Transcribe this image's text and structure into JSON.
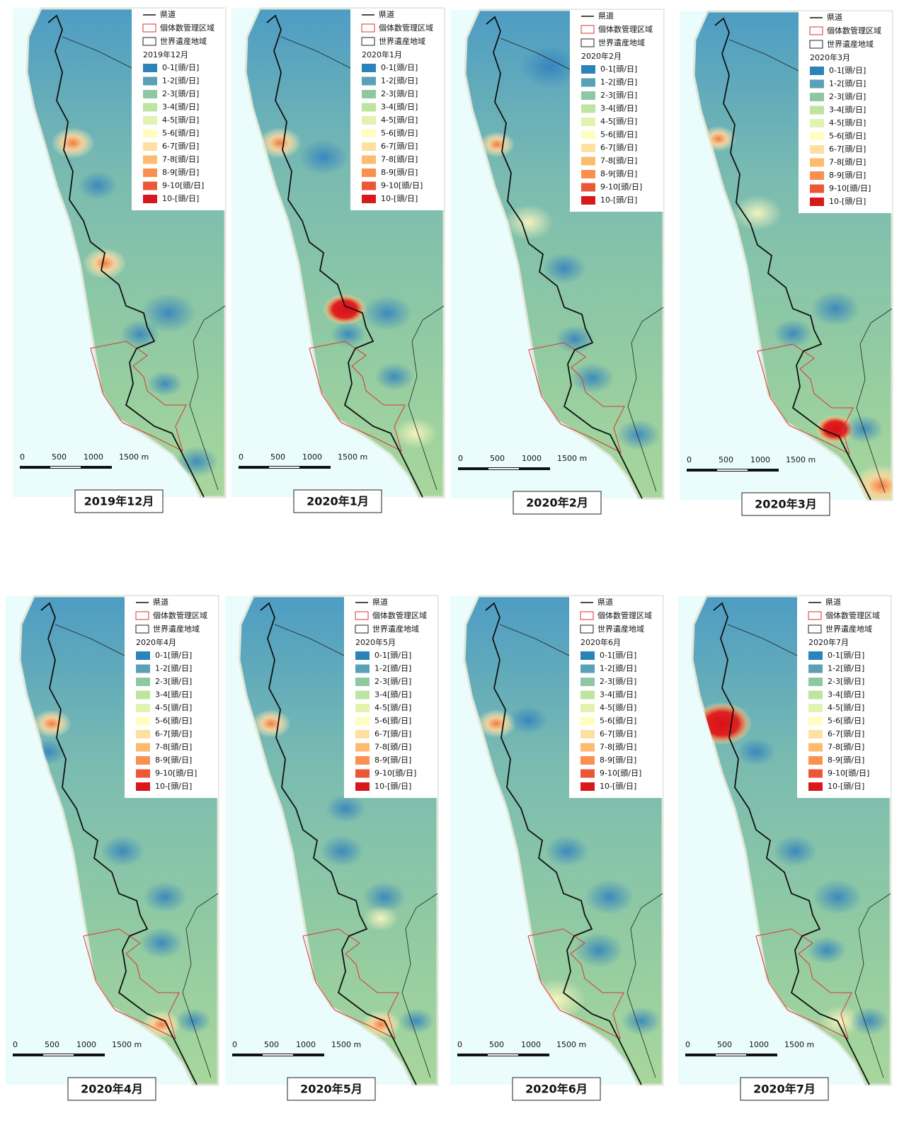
{
  "legend": {
    "road": "県道",
    "management_area": "個体数管理区域",
    "heritage_area": "世界遺産地域",
    "classes": [
      {
        "label": "0-1[頭/日]",
        "color": "#2b83ba"
      },
      {
        "label": "1-2[頭/日]",
        "color": "#5aa1b8"
      },
      {
        "label": "2-3[頭/日]",
        "color": "#8fc7a3"
      },
      {
        "label": "3-4[頭/日]",
        "color": "#bde5a0"
      },
      {
        "label": "4-5[頭/日]",
        "color": "#e3f2ae"
      },
      {
        "label": "5-6[頭/日]",
        "color": "#fffdc0"
      },
      {
        "label": "6-7[頭/日]",
        "color": "#fee0a0"
      },
      {
        "label": "7-8[頭/日]",
        "color": "#fdbb6f"
      },
      {
        "label": "8-9[頭/日]",
        "color": "#f99050"
      },
      {
        "label": "9-10[頭/日]",
        "color": "#ea5838"
      },
      {
        "label": "10-[頭/日]",
        "color": "#d7191c"
      }
    ]
  },
  "scale_labels": [
    "0",
    "500",
    "1000",
    "1500 m"
  ],
  "panels": [
    {
      "legend_month": "2019年12月",
      "caption": "2019年12月"
    },
    {
      "legend_month": "2020年1月",
      "caption": "2020年1月"
    },
    {
      "legend_month": "2020年2月",
      "caption": "2020年2月"
    },
    {
      "legend_month": "2020年3月",
      "caption": "2020年3月"
    },
    {
      "legend_month": "2020年4月",
      "caption": "2020年4月"
    },
    {
      "legend_month": "2020年5月",
      "caption": "2020年5月"
    },
    {
      "legend_month": "2020年6月",
      "caption": "2020年6月"
    },
    {
      "legend_month": "2020年7月",
      "caption": "2020年7月"
    }
  ]
}
